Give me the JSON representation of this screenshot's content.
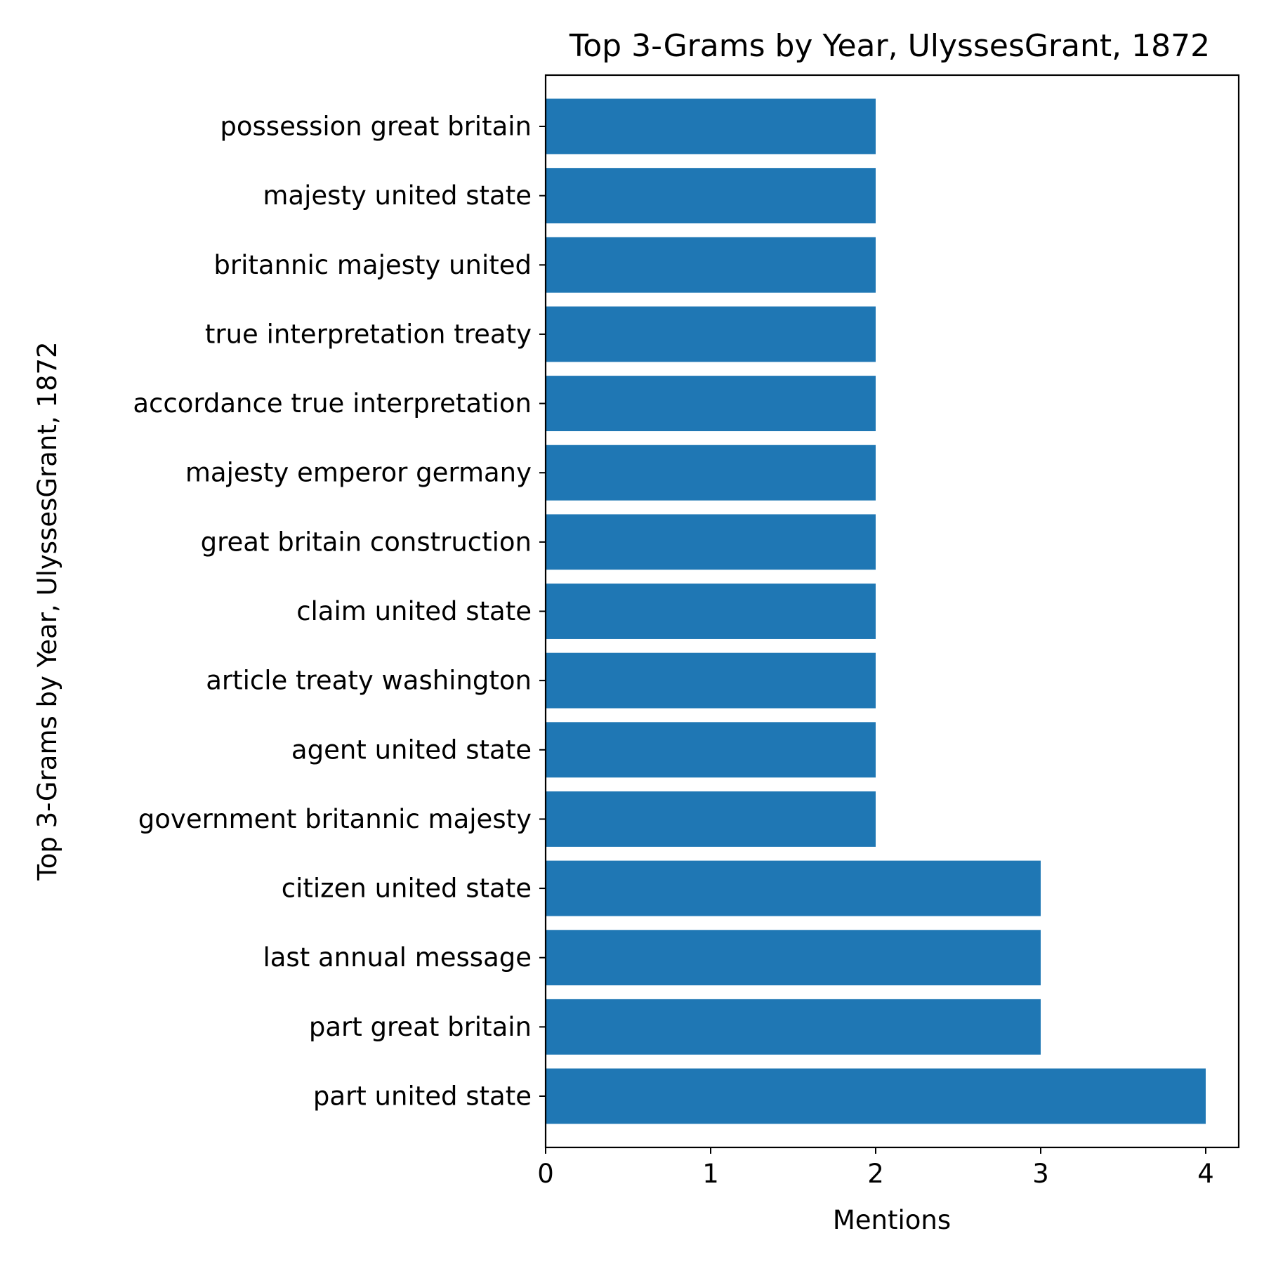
{
  "chart_data": {
    "type": "bar",
    "orientation": "horizontal",
    "title": "Top 3-Grams by Year, UlyssesGrant, 1872",
    "xlabel": "Mentions",
    "ylabel": "Top 3-Grams by Year, UlyssesGrant, 1872",
    "xlim": [
      0,
      4.2
    ],
    "xticks": [
      0,
      1,
      2,
      3,
      4
    ],
    "xtick_labels": [
      "0",
      "1",
      "2",
      "3",
      "4"
    ],
    "grid": false,
    "bar_color": "#1f77b4",
    "categories": [
      "part united state",
      "part great britain",
      "last annual message",
      "citizen united state",
      "government britannic majesty",
      "agent united state",
      "article treaty washington",
      "claim united state",
      "great britain construction",
      "majesty emperor germany",
      "accordance true interpretation",
      "true interpretation treaty",
      "britannic majesty united",
      "majesty united state",
      "possession great britain"
    ],
    "values": [
      4,
      3,
      3,
      3,
      2,
      2,
      2,
      2,
      2,
      2,
      2,
      2,
      2,
      2,
      2
    ]
  }
}
